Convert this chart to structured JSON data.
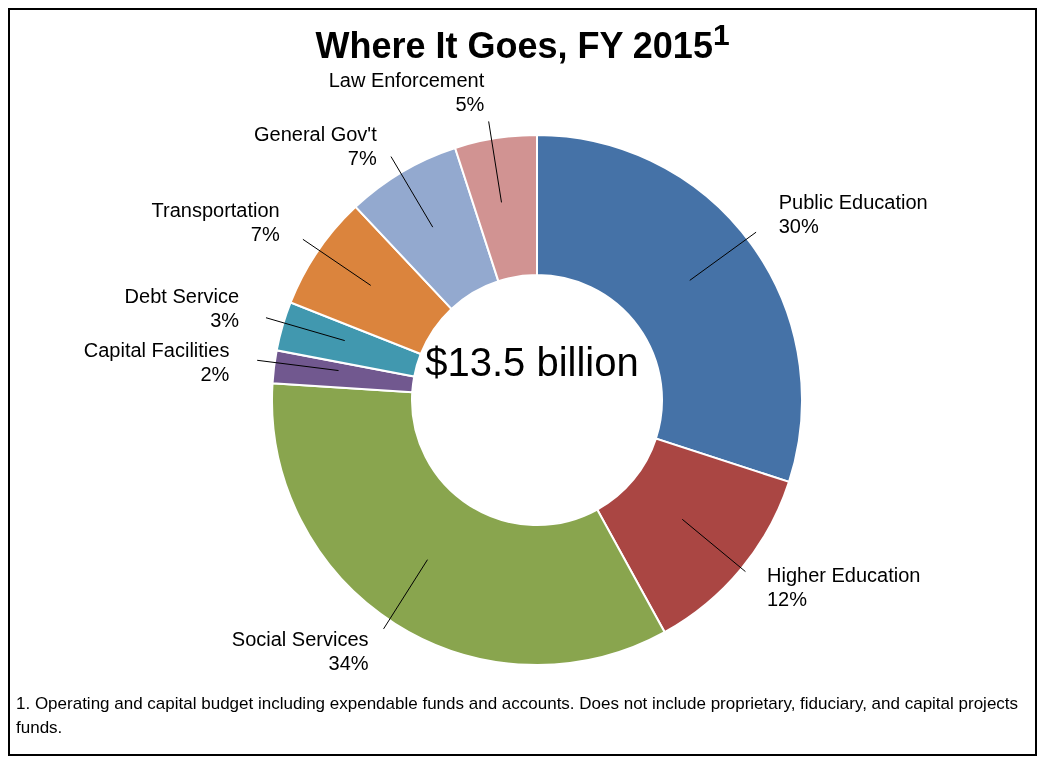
{
  "chart_data": {
    "type": "donut",
    "title": "Where It Goes, FY 2015$^{1}$",
    "categories": [
      "Public Education",
      "Higher Education",
      "Social Services",
      "Capital Facilities",
      "Debt Service",
      "Transportation",
      "General Gov't",
      "Law Enforcement"
    ],
    "values": [
      30,
      12,
      34,
      2,
      3,
      7,
      7,
      5
    ],
    "value_labels": [
      "30%",
      "12%",
      "34%",
      "2%",
      "3%",
      "7%",
      "7%",
      "5%"
    ],
    "colors": [
      "#4572a7",
      "#aa4643",
      "#89a54e",
      "#71588f",
      "#4198af",
      "#db843d",
      "#93a9cf",
      "#d19392"
    ],
    "annotations": [
      "$13.5 billion",
      "1. Operating and capital budget including expendable funds and accounts.  Does not include proprietary, fiduciary, and capital projects funds."
    ]
  }
}
